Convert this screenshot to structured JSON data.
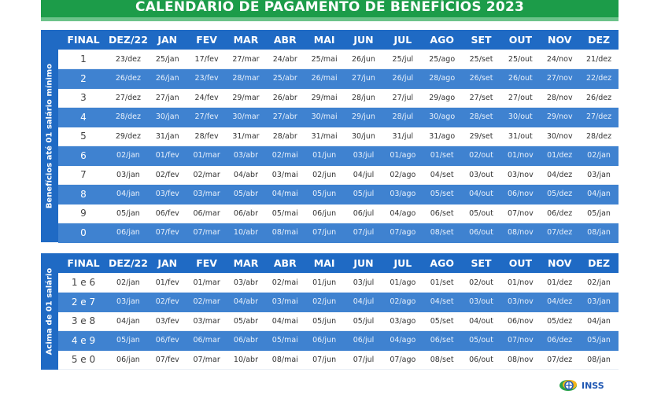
{
  "header": {
    "title": "CALENDÁRIO DE PAGAMENTO DE BENEFÍCIOS 2023",
    "colors": {
      "green": "#1c9c49",
      "blue": "#1f6ac4",
      "alt_row": "#3f82d0"
    }
  },
  "columns": [
    "FINAL",
    "DEZ/22",
    "JAN",
    "FEV",
    "MAR",
    "ABR",
    "MAI",
    "JUN",
    "JUL",
    "AGO",
    "SET",
    "OUT",
    "NOV",
    "DEZ"
  ],
  "section1": {
    "label": "Benefícios até 01 salário mínimo",
    "rows": [
      [
        "1",
        "23/dez",
        "25/jan",
        "17/fev",
        "27/mar",
        "24/abr",
        "25/mai",
        "26/jun",
        "25/jul",
        "25/ago",
        "25/set",
        "25/out",
        "24/nov",
        "21/dez"
      ],
      [
        "2",
        "26/dez",
        "26/jan",
        "23/fev",
        "28/mar",
        "25/abr",
        "26/mai",
        "27/jun",
        "26/jul",
        "28/ago",
        "26/set",
        "26/out",
        "27/nov",
        "22/dez"
      ],
      [
        "3",
        "27/dez",
        "27/jan",
        "24/fev",
        "29/mar",
        "26/abr",
        "29/mai",
        "28/jun",
        "27/jul",
        "29/ago",
        "27/set",
        "27/out",
        "28/nov",
        "26/dez"
      ],
      [
        "4",
        "28/dez",
        "30/jan",
        "27/fev",
        "30/mar",
        "27/abr",
        "30/mai",
        "29/jun",
        "28/jul",
        "30/ago",
        "28/set",
        "30/out",
        "29/nov",
        "27/dez"
      ],
      [
        "5",
        "29/dez",
        "31/jan",
        "28/fev",
        "31/mar",
        "28/abr",
        "31/mai",
        "30/jun",
        "31/jul",
        "31/ago",
        "29/set",
        "31/out",
        "30/nov",
        "28/dez"
      ],
      [
        "6",
        "02/jan",
        "01/fev",
        "01/mar",
        "03/abr",
        "02/mai",
        "01/jun",
        "03/jul",
        "01/ago",
        "01/set",
        "02/out",
        "01/nov",
        "01/dez",
        "02/jan"
      ],
      [
        "7",
        "03/jan",
        "02/fev",
        "02/mar",
        "04/abr",
        "03/mai",
        "02/jun",
        "04/jul",
        "02/ago",
        "04/set",
        "03/out",
        "03/nov",
        "04/dez",
        "03/jan"
      ],
      [
        "8",
        "04/jan",
        "03/fev",
        "03/mar",
        "05/abr",
        "04/mai",
        "05/jun",
        "05/jul",
        "03/ago",
        "05/set",
        "04/out",
        "06/nov",
        "05/dez",
        "04/jan"
      ],
      [
        "9",
        "05/jan",
        "06/fev",
        "06/mar",
        "06/abr",
        "05/mai",
        "06/jun",
        "06/jul",
        "04/ago",
        "06/set",
        "05/out",
        "07/nov",
        "06/dez",
        "05/jan"
      ],
      [
        "0",
        "06/jan",
        "07/fev",
        "07/mar",
        "10/abr",
        "08/mai",
        "07/jun",
        "07/jul",
        "07/ago",
        "08/set",
        "06/out",
        "08/nov",
        "07/dez",
        "08/jan"
      ]
    ]
  },
  "section2": {
    "label": "Acima de 01 salário",
    "rows": [
      [
        "1 e 6",
        "02/jan",
        "01/fev",
        "01/mar",
        "03/abr",
        "02/mai",
        "01/jun",
        "03/jul",
        "01/ago",
        "01/set",
        "02/out",
        "01/nov",
        "01/dez",
        "02/jan"
      ],
      [
        "2 e 7",
        "03/jan",
        "02/fev",
        "02/mar",
        "04/abr",
        "03/mai",
        "02/jun",
        "04/jul",
        "02/ago",
        "04/set",
        "03/out",
        "03/nov",
        "04/dez",
        "03/jan"
      ],
      [
        "3 e 8",
        "04/jan",
        "03/fev",
        "03/mar",
        "05/abr",
        "04/mai",
        "05/jun",
        "05/jul",
        "03/ago",
        "05/set",
        "04/out",
        "06/nov",
        "05/dez",
        "04/jan"
      ],
      [
        "4 e 9",
        "05/jan",
        "06/fev",
        "06/mar",
        "06/abr",
        "05/mai",
        "06/jun",
        "06/jul",
        "04/ago",
        "06/set",
        "05/out",
        "07/nov",
        "06/dez",
        "05/jan"
      ],
      [
        "5 e 0",
        "06/jan",
        "07/fev",
        "07/mar",
        "10/abr",
        "08/mai",
        "07/jun",
        "07/jul",
        "07/ago",
        "08/set",
        "06/out",
        "08/nov",
        "07/dez",
        "08/jan"
      ]
    ]
  },
  "logo": {
    "text": "INSS",
    "icon": "inss-logo-icon"
  }
}
